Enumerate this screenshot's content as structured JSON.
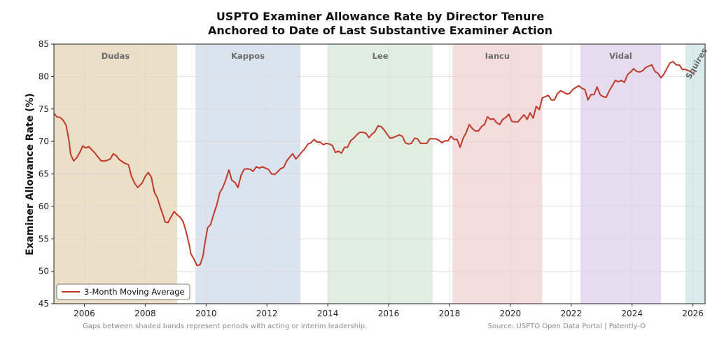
{
  "chart_data": {
    "type": "line",
    "title": "USPTO Examiner Allowance Rate by Director Tenure",
    "subtitle": "Anchored to Date of Last Substantive Examiner Action",
    "ylabel": "Examiner Allowance Rate (%)",
    "xlabel": "",
    "xlim": [
      2005.0,
      2026.4
    ],
    "ylim": [
      45,
      85
    ],
    "x_ticks": [
      2006,
      2008,
      2010,
      2012,
      2014,
      2016,
      2018,
      2020,
      2022,
      2024,
      2026
    ],
    "y_ticks": [
      45,
      50,
      55,
      60,
      65,
      70,
      75,
      80,
      85
    ],
    "grid": true,
    "legend": {
      "position": "bottom-left",
      "entries": [
        "3-Month Moving Average"
      ]
    },
    "bands": [
      {
        "label": "Dudas",
        "start": 2005.0,
        "end": 2009.05,
        "color": "#ecdfc7"
      },
      {
        "label": "Kappos",
        "start": 2009.65,
        "end": 2013.1,
        "color": "#dbe3ef"
      },
      {
        "label": "Lee",
        "start": 2014.0,
        "end": 2017.45,
        "color": "#e0ede0"
      },
      {
        "label": "Iancu",
        "start": 2018.1,
        "end": 2021.05,
        "color": "#f4dcdc"
      },
      {
        "label": "Vidal",
        "start": 2022.3,
        "end": 2024.95,
        "color": "#e5ddef"
      },
      {
        "label": "Squires",
        "start": 2025.75,
        "end": 2026.4,
        "color": "#d8ecec"
      }
    ],
    "series": [
      {
        "name": "3-Month Moving Average",
        "color": "#c0392b",
        "points": [
          [
            2005.0,
            74.3
          ],
          [
            2005.1,
            73.8
          ],
          [
            2005.2,
            73.7
          ],
          [
            2005.3,
            73.3
          ],
          [
            2005.4,
            72.5
          ],
          [
            2005.5,
            70.0
          ],
          [
            2005.55,
            68.0
          ],
          [
            2005.65,
            67.0
          ],
          [
            2005.75,
            67.5
          ],
          [
            2005.85,
            68.3
          ],
          [
            2005.95,
            69.3
          ],
          [
            2006.05,
            69.0
          ],
          [
            2006.15,
            69.2
          ],
          [
            2006.25,
            68.7
          ],
          [
            2006.35,
            68.2
          ],
          [
            2006.45,
            67.6
          ],
          [
            2006.55,
            67.0
          ],
          [
            2006.7,
            67.0
          ],
          [
            2006.85,
            67.3
          ],
          [
            2006.95,
            68.1
          ],
          [
            2007.05,
            67.8
          ],
          [
            2007.15,
            67.2
          ],
          [
            2007.3,
            66.7
          ],
          [
            2007.45,
            66.4
          ],
          [
            2007.55,
            64.6
          ],
          [
            2007.65,
            63.6
          ],
          [
            2007.75,
            62.9
          ],
          [
            2007.9,
            63.6
          ],
          [
            2008.0,
            64.6
          ],
          [
            2008.1,
            65.2
          ],
          [
            2008.2,
            64.5
          ],
          [
            2008.3,
            62.2
          ],
          [
            2008.4,
            61.3
          ],
          [
            2008.5,
            59.8
          ],
          [
            2008.6,
            58.5
          ],
          [
            2008.65,
            57.6
          ],
          [
            2008.75,
            57.5
          ],
          [
            2008.85,
            58.4
          ],
          [
            2008.95,
            59.2
          ],
          [
            2009.05,
            58.7
          ],
          [
            2009.15,
            58.3
          ],
          [
            2009.25,
            57.6
          ],
          [
            2009.35,
            56.0
          ],
          [
            2009.45,
            54.0
          ],
          [
            2009.5,
            52.7
          ],
          [
            2009.6,
            51.9
          ],
          [
            2009.7,
            50.9
          ],
          [
            2009.8,
            51.0
          ],
          [
            2009.9,
            52.3
          ],
          [
            2009.95,
            54.0
          ],
          [
            2010.05,
            56.7
          ],
          [
            2010.15,
            57.2
          ],
          [
            2010.25,
            58.8
          ],
          [
            2010.35,
            60.2
          ],
          [
            2010.45,
            62.1
          ],
          [
            2010.55,
            62.9
          ],
          [
            2010.65,
            64.1
          ],
          [
            2010.75,
            65.6
          ],
          [
            2010.85,
            64.0
          ],
          [
            2010.95,
            63.7
          ],
          [
            2011.05,
            62.9
          ],
          [
            2011.15,
            64.8
          ],
          [
            2011.25,
            65.7
          ],
          [
            2011.35,
            65.8
          ],
          [
            2011.45,
            65.7
          ],
          [
            2011.55,
            65.4
          ],
          [
            2011.65,
            66.1
          ],
          [
            2011.75,
            65.9
          ],
          [
            2011.85,
            66.1
          ],
          [
            2011.95,
            65.9
          ],
          [
            2012.05,
            65.7
          ],
          [
            2012.15,
            65.0
          ],
          [
            2012.25,
            64.9
          ],
          [
            2012.35,
            65.3
          ],
          [
            2012.45,
            65.8
          ],
          [
            2012.55,
            66.0
          ],
          [
            2012.65,
            67.0
          ],
          [
            2012.75,
            67.6
          ],
          [
            2012.85,
            68.1
          ],
          [
            2012.95,
            67.3
          ],
          [
            2013.05,
            67.8
          ],
          [
            2013.15,
            68.4
          ],
          [
            2013.25,
            68.9
          ],
          [
            2013.35,
            69.6
          ],
          [
            2013.45,
            69.8
          ],
          [
            2013.55,
            70.3
          ],
          [
            2013.65,
            69.9
          ],
          [
            2013.75,
            69.9
          ],
          [
            2013.85,
            69.5
          ],
          [
            2013.95,
            69.7
          ],
          [
            2014.05,
            69.6
          ],
          [
            2014.15,
            69.4
          ],
          [
            2014.25,
            68.3
          ],
          [
            2014.35,
            68.5
          ],
          [
            2014.45,
            68.2
          ],
          [
            2014.55,
            69.1
          ],
          [
            2014.65,
            69.1
          ],
          [
            2014.75,
            70.1
          ],
          [
            2014.85,
            70.5
          ],
          [
            2014.95,
            71.0
          ],
          [
            2015.05,
            71.4
          ],
          [
            2015.15,
            71.4
          ],
          [
            2015.25,
            71.3
          ],
          [
            2015.35,
            70.6
          ],
          [
            2015.45,
            71.1
          ],
          [
            2015.55,
            71.5
          ],
          [
            2015.65,
            72.4
          ],
          [
            2015.75,
            72.3
          ],
          [
            2015.85,
            71.8
          ],
          [
            2015.95,
            71.1
          ],
          [
            2016.05,
            70.5
          ],
          [
            2016.15,
            70.6
          ],
          [
            2016.25,
            70.8
          ],
          [
            2016.35,
            71.0
          ],
          [
            2016.45,
            70.8
          ],
          [
            2016.55,
            69.8
          ],
          [
            2016.65,
            69.6
          ],
          [
            2016.75,
            69.7
          ],
          [
            2016.85,
            70.5
          ],
          [
            2016.95,
            70.4
          ],
          [
            2017.05,
            69.7
          ],
          [
            2017.15,
            69.7
          ],
          [
            2017.25,
            69.7
          ],
          [
            2017.35,
            70.4
          ],
          [
            2017.45,
            70.4
          ],
          [
            2017.55,
            70.4
          ],
          [
            2017.65,
            70.2
          ],
          [
            2017.75,
            69.8
          ],
          [
            2017.85,
            70.1
          ],
          [
            2017.95,
            70.1
          ],
          [
            2018.05,
            70.8
          ],
          [
            2018.15,
            70.3
          ],
          [
            2018.25,
            70.3
          ],
          [
            2018.35,
            69.1
          ],
          [
            2018.45,
            70.5
          ],
          [
            2018.55,
            71.4
          ],
          [
            2018.65,
            72.6
          ],
          [
            2018.75,
            72.0
          ],
          [
            2018.85,
            71.6
          ],
          [
            2018.95,
            71.6
          ],
          [
            2019.05,
            72.3
          ],
          [
            2019.15,
            72.6
          ],
          [
            2019.25,
            73.8
          ],
          [
            2019.35,
            73.4
          ],
          [
            2019.45,
            73.5
          ],
          [
            2019.55,
            72.9
          ],
          [
            2019.65,
            72.6
          ],
          [
            2019.75,
            73.4
          ],
          [
            2019.85,
            73.7
          ],
          [
            2019.95,
            74.2
          ],
          [
            2020.05,
            73.1
          ],
          [
            2020.15,
            73.0
          ],
          [
            2020.25,
            73.0
          ],
          [
            2020.35,
            73.6
          ],
          [
            2020.45,
            74.1
          ],
          [
            2020.55,
            73.4
          ],
          [
            2020.65,
            74.4
          ],
          [
            2020.75,
            73.6
          ],
          [
            2020.85,
            75.4
          ],
          [
            2020.95,
            74.9
          ],
          [
            2021.05,
            76.7
          ],
          [
            2021.15,
            76.9
          ],
          [
            2021.25,
            77.1
          ],
          [
            2021.35,
            76.4
          ],
          [
            2021.45,
            76.4
          ],
          [
            2021.55,
            77.4
          ],
          [
            2021.65,
            77.8
          ],
          [
            2021.75,
            77.6
          ],
          [
            2021.85,
            77.3
          ],
          [
            2021.95,
            77.4
          ],
          [
            2022.05,
            78.0
          ],
          [
            2022.15,
            78.3
          ],
          [
            2022.25,
            78.6
          ],
          [
            2022.35,
            78.2
          ],
          [
            2022.45,
            78.0
          ],
          [
            2022.55,
            76.4
          ],
          [
            2022.65,
            77.2
          ],
          [
            2022.75,
            77.2
          ],
          [
            2022.85,
            78.4
          ],
          [
            2022.95,
            77.2
          ],
          [
            2023.05,
            76.9
          ],
          [
            2023.15,
            76.8
          ],
          [
            2023.25,
            77.8
          ],
          [
            2023.35,
            78.6
          ],
          [
            2023.45,
            79.4
          ],
          [
            2023.55,
            79.2
          ],
          [
            2023.65,
            79.4
          ],
          [
            2023.75,
            79.1
          ],
          [
            2023.85,
            80.3
          ],
          [
            2023.95,
            80.7
          ],
          [
            2024.05,
            81.2
          ],
          [
            2024.15,
            80.8
          ],
          [
            2024.25,
            80.7
          ],
          [
            2024.35,
            80.9
          ],
          [
            2024.45,
            81.4
          ],
          [
            2024.55,
            81.6
          ],
          [
            2024.65,
            81.8
          ],
          [
            2024.75,
            80.8
          ],
          [
            2024.85,
            80.5
          ],
          [
            2024.95,
            79.8
          ],
          [
            2025.05,
            80.4
          ],
          [
            2025.15,
            81.3
          ],
          [
            2025.25,
            82.1
          ],
          [
            2025.35,
            82.3
          ],
          [
            2025.45,
            81.8
          ],
          [
            2025.55,
            81.8
          ],
          [
            2025.65,
            81.1
          ],
          [
            2025.75,
            81.1
          ],
          [
            2025.85,
            80.9
          ],
          [
            2025.95,
            80.7
          ],
          [
            2026.05,
            80.3
          ]
        ]
      }
    ],
    "footnote_left": "Gaps between shaded bands represent periods with acting or interim leadership.",
    "footnote_right": "Source: USPTO Open Data Portal | Patently-O"
  }
}
